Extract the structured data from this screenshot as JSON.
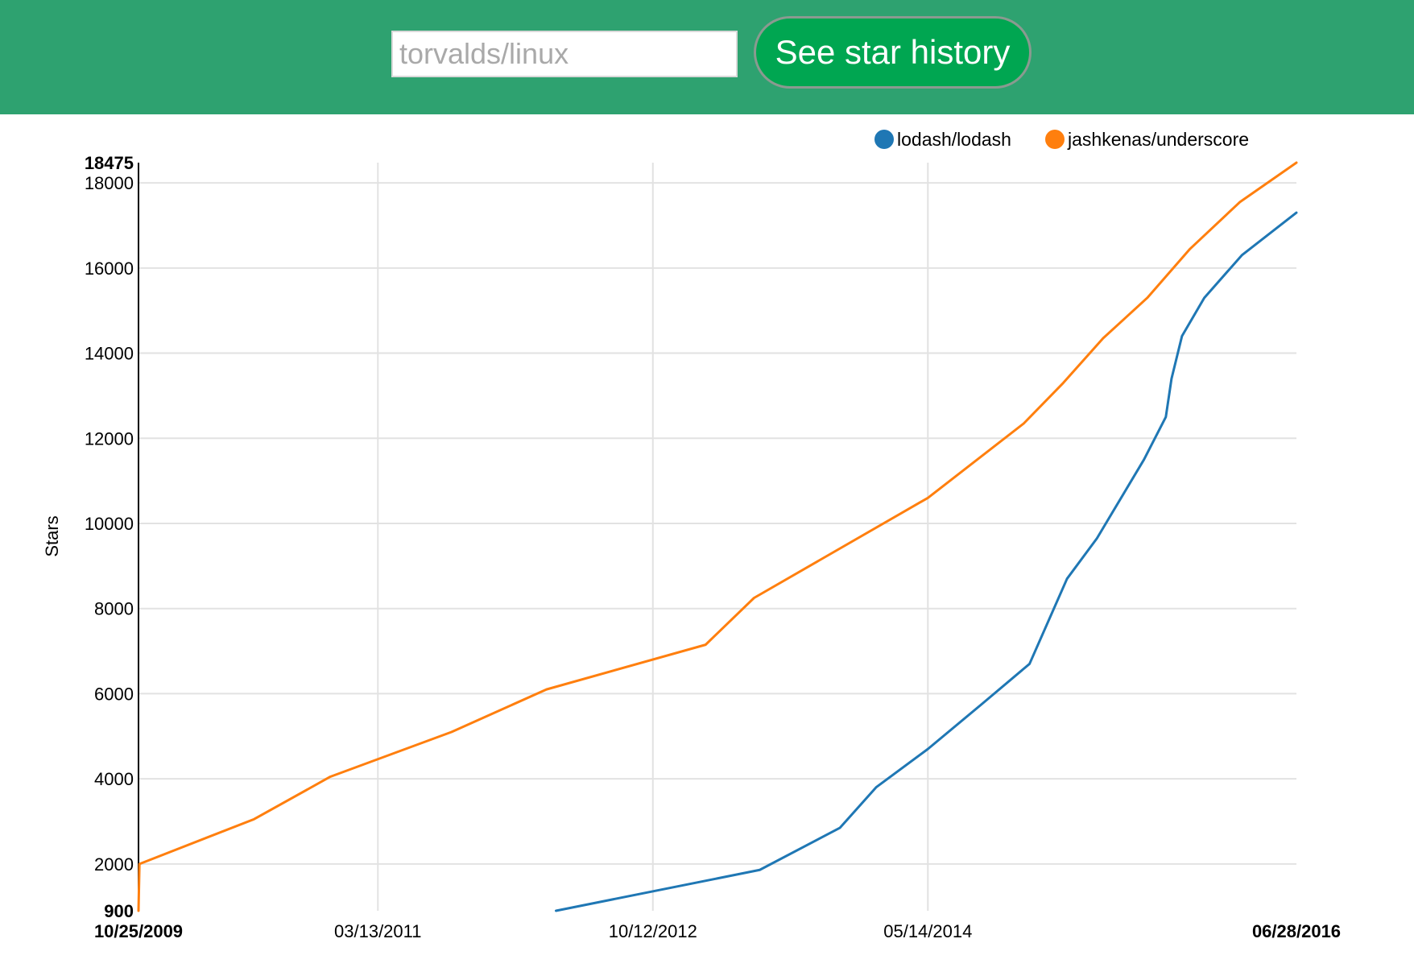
{
  "header": {
    "repo_input_placeholder": "torvalds/linux",
    "repo_input_value": "",
    "button_label": "See star history",
    "background_color": "#2ea270",
    "button_color": "#00a651"
  },
  "chart_data": {
    "type": "line",
    "title": "",
    "xlabel": "",
    "ylabel": "Stars",
    "x_axis_kind": "date",
    "x_range": [
      "10/25/2009",
      "06/28/2016"
    ],
    "ylim": [
      900,
      18475
    ],
    "y_ticks": [
      "900",
      "2000",
      "4000",
      "6000",
      "8000",
      "10000",
      "12000",
      "14000",
      "16000",
      "18000",
      "18475"
    ],
    "y_tick_values": [
      900,
      2000,
      4000,
      6000,
      8000,
      10000,
      12000,
      14000,
      16000,
      18000,
      18475
    ],
    "x_ticks": [
      "10/25/2009",
      "03/13/2011",
      "10/12/2012",
      "05/14/2014",
      "06/28/2016"
    ],
    "x_tick_dates": [
      "2009-10-25",
      "2011-03-13",
      "2012-10-12",
      "2014-05-14",
      "2016-06-28"
    ],
    "grid": true,
    "legend_position": "top-right",
    "series": [
      {
        "name": "lodash/lodash",
        "color": "#1f77b4",
        "points": [
          [
            "2012-03-22",
            900
          ],
          [
            "2013-05-25",
            1860
          ],
          [
            "2013-11-10",
            2850
          ],
          [
            "2014-01-25",
            3800
          ],
          [
            "2014-05-14",
            4700
          ],
          [
            "2014-09-04",
            5750
          ],
          [
            "2014-12-14",
            6700
          ],
          [
            "2015-03-03",
            8700
          ],
          [
            "2015-05-05",
            9650
          ],
          [
            "2015-08-12",
            11500
          ],
          [
            "2015-09-27",
            12500
          ],
          [
            "2015-10-09",
            13400
          ],
          [
            "2015-10-31",
            14400
          ],
          [
            "2015-12-17",
            15300
          ],
          [
            "2016-03-05",
            16300
          ],
          [
            "2016-06-28",
            17300
          ]
        ]
      },
      {
        "name": "jashkenas/underscore",
        "color": "#ff7f0e",
        "points": [
          [
            "2009-10-25",
            900
          ],
          [
            "2009-10-27",
            2000
          ],
          [
            "2010-06-25",
            3050
          ],
          [
            "2010-12-03",
            4050
          ],
          [
            "2011-08-15",
            5100
          ],
          [
            "2012-03-02",
            6100
          ],
          [
            "2013-01-31",
            7150
          ],
          [
            "2013-05-13",
            8250
          ],
          [
            "2014-05-14",
            10600
          ],
          [
            "2014-12-02",
            12350
          ],
          [
            "2015-02-23",
            13300
          ],
          [
            "2015-05-18",
            14350
          ],
          [
            "2015-08-19",
            15300
          ],
          [
            "2015-11-17",
            16450
          ],
          [
            "2016-03-01",
            17550
          ],
          [
            "2016-06-28",
            18475
          ]
        ]
      }
    ]
  }
}
